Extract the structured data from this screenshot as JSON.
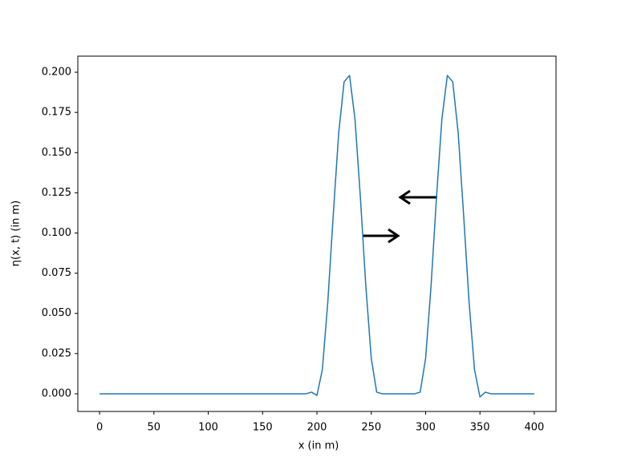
{
  "chart_data": {
    "type": "line",
    "xlabel": "x (in m)",
    "ylabel": "η(x, t) (in m)",
    "x": [
      0,
      5,
      10,
      15,
      20,
      25,
      30,
      35,
      40,
      45,
      50,
      55,
      60,
      65,
      70,
      75,
      80,
      85,
      90,
      95,
      100,
      105,
      110,
      115,
      120,
      125,
      130,
      135,
      140,
      145,
      150,
      155,
      160,
      165,
      170,
      175,
      180,
      185,
      190,
      195,
      200,
      205,
      210,
      215,
      220,
      225,
      230,
      235,
      240,
      245,
      250,
      255,
      260,
      265,
      270,
      275,
      280,
      285,
      290,
      295,
      300,
      305,
      310,
      315,
      320,
      325,
      330,
      335,
      340,
      345,
      350,
      355,
      360,
      365,
      370,
      375,
      380,
      385,
      390,
      395,
      400
    ],
    "series": [
      {
        "color": "#1f77b4",
        "values": [
          0,
          0,
          0,
          0,
          0,
          0,
          0,
          0,
          0,
          0,
          0,
          0,
          0,
          0,
          0,
          0,
          0,
          0,
          0,
          0,
          0,
          0,
          0,
          0,
          0,
          0,
          0,
          0,
          0,
          0,
          0,
          0,
          0,
          0,
          0,
          0,
          0,
          0,
          0,
          0.001,
          -0.001,
          0.015,
          0.057,
          0.111,
          0.162,
          0.194,
          0.198,
          0.171,
          0.122,
          0.067,
          0.022,
          0.001,
          0,
          0,
          0,
          0,
          0,
          0,
          0,
          0.001,
          0.022,
          0.067,
          0.122,
          0.171,
          0.198,
          0.194,
          0.162,
          0.111,
          0.057,
          0.015,
          -0.002,
          0.001,
          0,
          0,
          0,
          0,
          0,
          0,
          0,
          0,
          0
        ]
      }
    ],
    "xlim": [
      -20,
      420
    ],
    "xticks": [
      0,
      50,
      100,
      150,
      200,
      250,
      300,
      350,
      400
    ],
    "ylim": [
      -0.011,
      0.21
    ],
    "yticks": [
      {
        "value": 0,
        "label": "0.000"
      },
      {
        "value": 0.025,
        "label": "0.025"
      },
      {
        "value": 0.05,
        "label": "0.050"
      },
      {
        "value": 0.075,
        "label": "0.075"
      },
      {
        "value": 0.1,
        "label": "0.100"
      },
      {
        "value": 0.125,
        "label": "0.125"
      },
      {
        "value": 0.15,
        "label": "0.150"
      },
      {
        "value": 0.175,
        "label": "0.175"
      },
      {
        "value": 0.2,
        "label": "0.200"
      }
    ]
  }
}
